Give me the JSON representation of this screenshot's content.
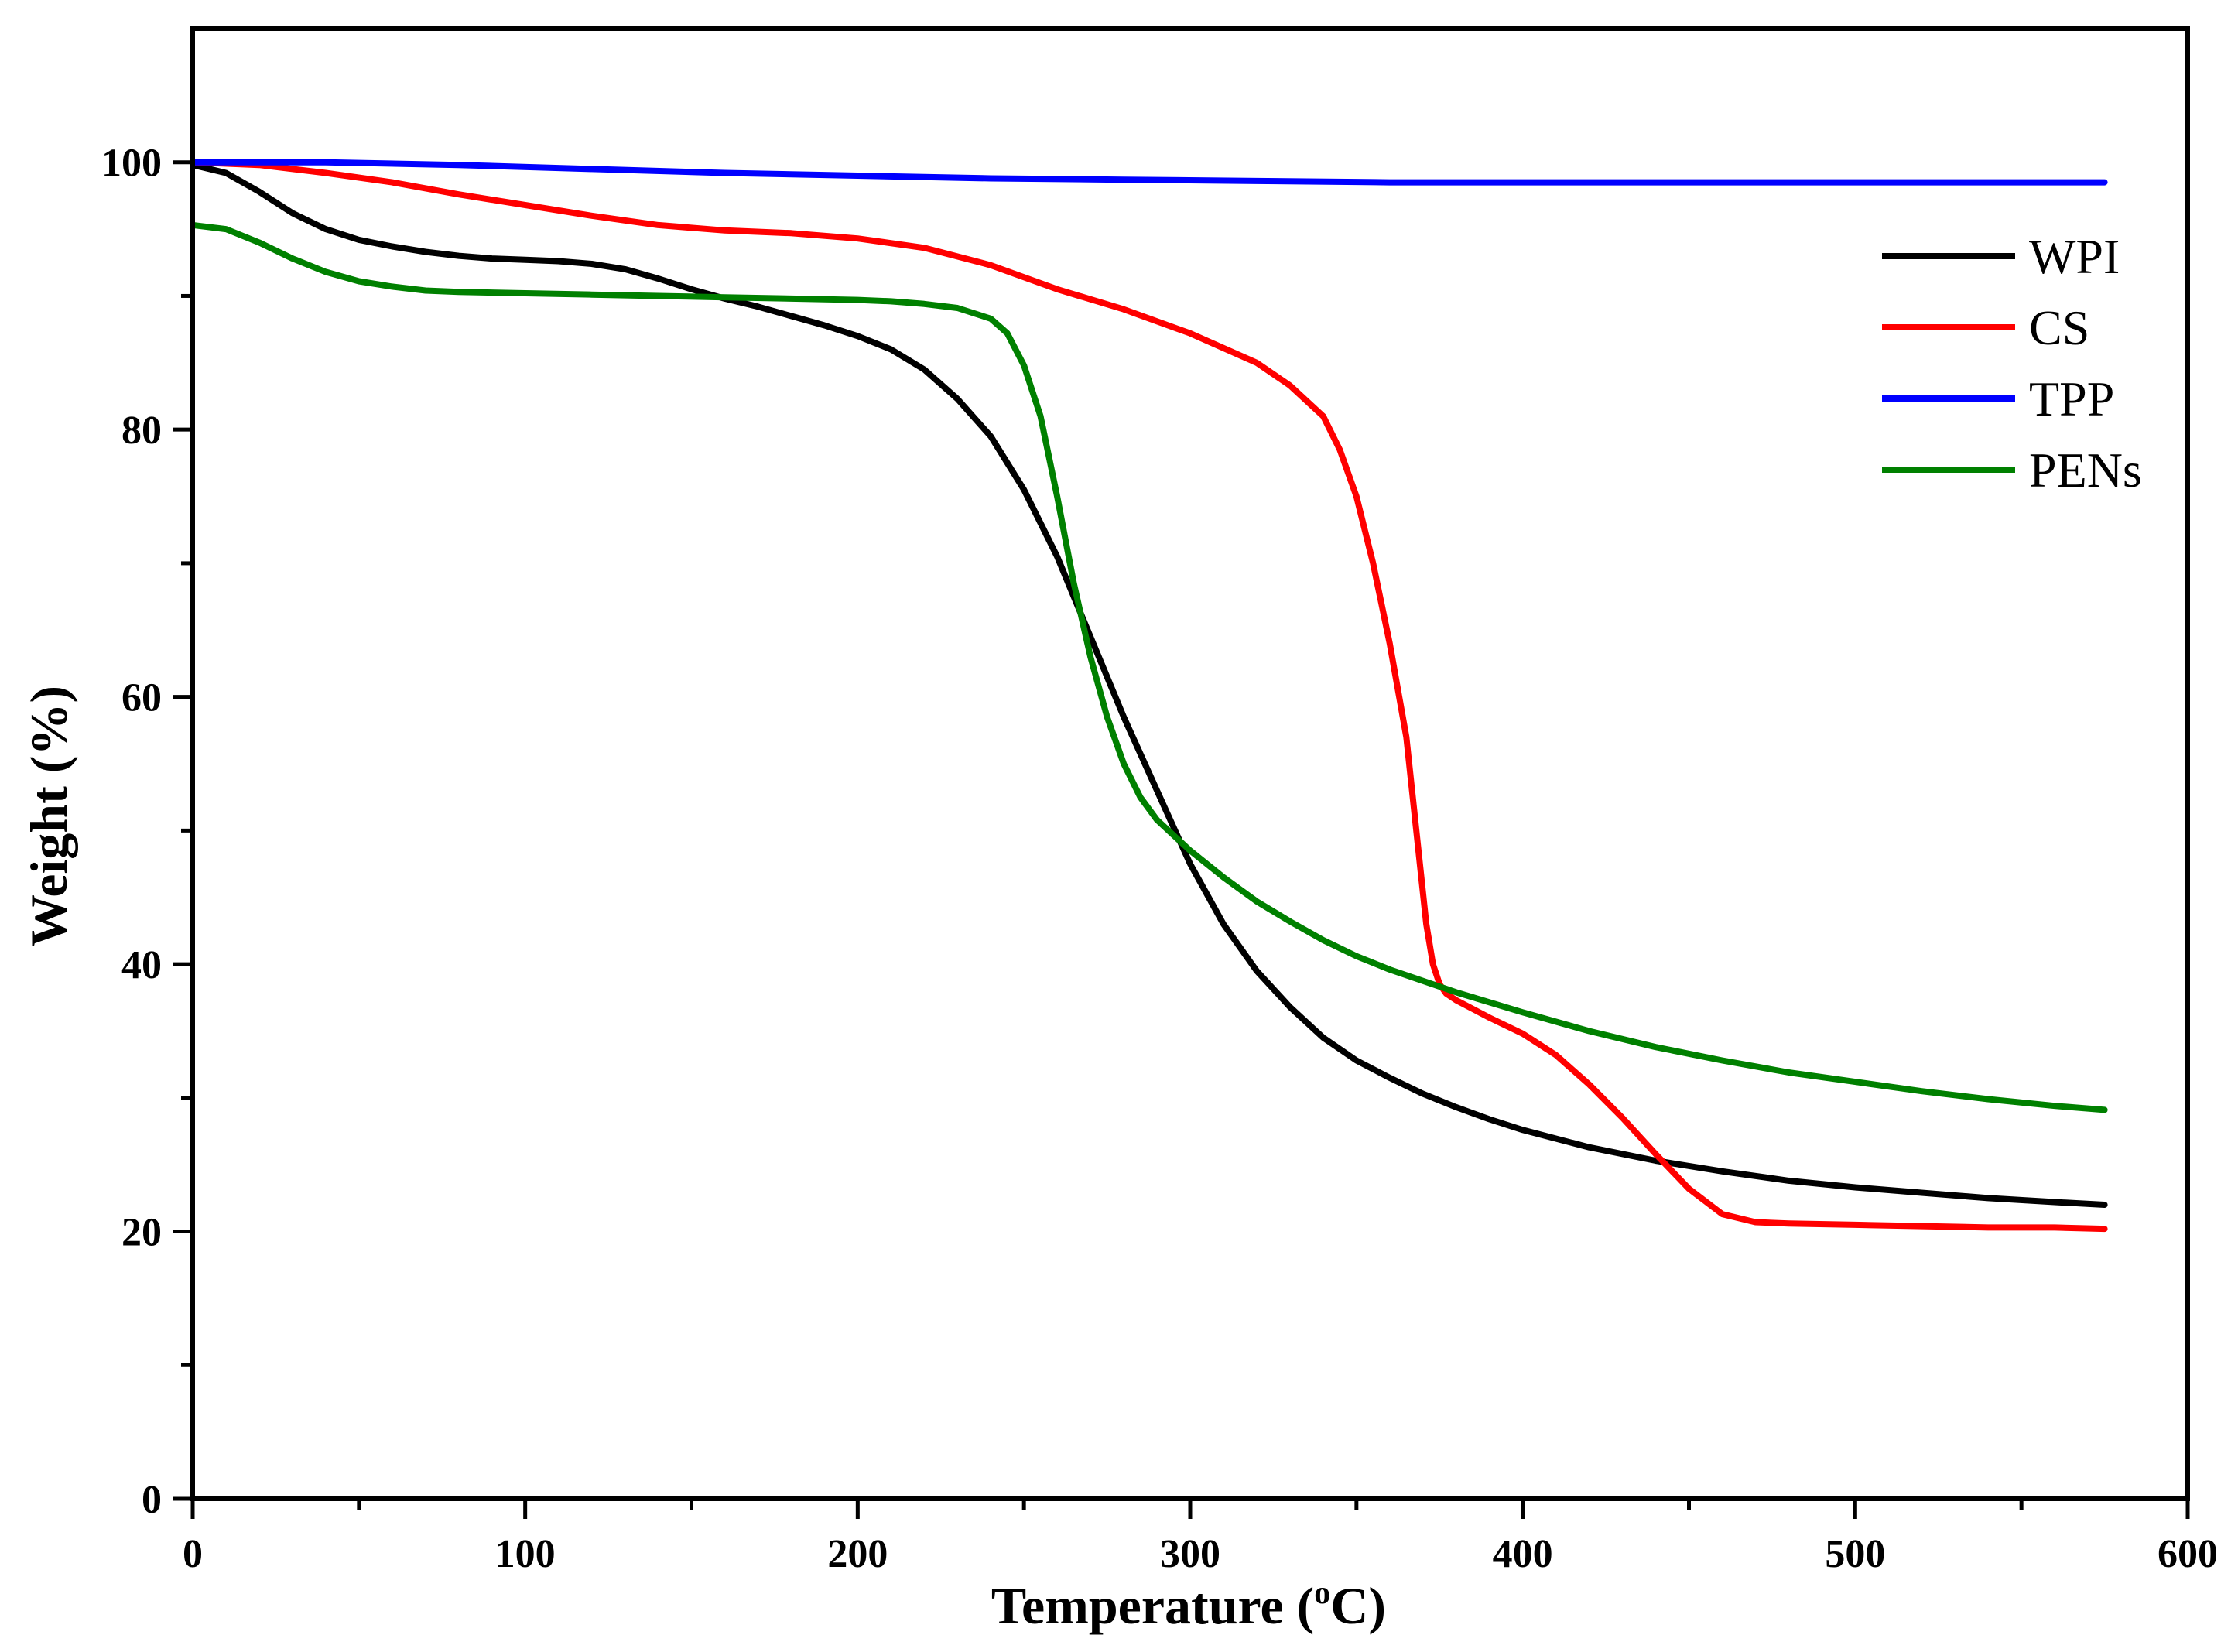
{
  "chart_data": {
    "type": "line",
    "xlabel": "Temperature",
    "xlabel_unit_prefix": "(",
    "xlabel_unit_sup": "o",
    "xlabel_unit_suffix": "C)",
    "ylabel": "Weight (%)",
    "xlim": [
      0,
      600
    ],
    "ylim": [
      0,
      110
    ],
    "xticks": [
      0,
      100,
      200,
      300,
      400,
      500,
      600
    ],
    "xtick_labels": [
      "0",
      "100",
      "200",
      "300",
      "400",
      "500",
      "600"
    ],
    "yticks": [
      0,
      20,
      40,
      60,
      80,
      100
    ],
    "ytick_labels": [
      "0",
      "20",
      "40",
      "60",
      "80",
      "100"
    ],
    "grid": false,
    "legend_position": "top-right",
    "series": [
      {
        "name": "WPI",
        "color": "#000000",
        "x": [
          0,
          10,
          20,
          30,
          40,
          50,
          60,
          70,
          80,
          90,
          100,
          110,
          120,
          130,
          140,
          150,
          160,
          170,
          180,
          190,
          200,
          210,
          220,
          230,
          240,
          250,
          260,
          270,
          280,
          290,
          300,
          310,
          320,
          330,
          340,
          350,
          360,
          370,
          380,
          390,
          400,
          420,
          440,
          460,
          480,
          500,
          520,
          540,
          560,
          575
        ],
        "y": [
          99.8,
          99.2,
          97.8,
          96.2,
          95.0,
          94.2,
          93.7,
          93.3,
          93.0,
          92.8,
          92.7,
          92.6,
          92.4,
          92.0,
          91.3,
          90.5,
          89.8,
          89.2,
          88.5,
          87.8,
          87.0,
          86.0,
          84.5,
          82.3,
          79.5,
          75.5,
          70.5,
          64.5,
          58.5,
          53.0,
          47.5,
          43.0,
          39.5,
          36.8,
          34.5,
          32.8,
          31.5,
          30.3,
          29.3,
          28.4,
          27.6,
          26.3,
          25.3,
          24.5,
          23.8,
          23.3,
          22.9,
          22.5,
          22.2,
          22.0
        ]
      },
      {
        "name": "CS",
        "color": "#ff0000",
        "x": [
          0,
          20,
          40,
          60,
          80,
          100,
          120,
          140,
          160,
          180,
          200,
          220,
          240,
          260,
          280,
          300,
          320,
          330,
          340,
          345,
          350,
          355,
          360,
          365,
          368,
          371,
          373,
          375,
          377,
          380,
          390,
          400,
          410,
          420,
          430,
          440,
          450,
          460,
          470,
          480,
          500,
          520,
          540,
          560,
          575
        ],
        "y": [
          100.0,
          99.8,
          99.2,
          98.5,
          97.6,
          96.8,
          96.0,
          95.3,
          94.9,
          94.7,
          94.3,
          93.6,
          92.3,
          90.5,
          89.0,
          87.2,
          85.0,
          83.3,
          81.0,
          78.5,
          75.0,
          70.0,
          64.0,
          57.0,
          50.0,
          43.0,
          40.0,
          38.5,
          37.8,
          37.3,
          36.0,
          34.8,
          33.2,
          31.0,
          28.5,
          25.8,
          23.2,
          21.3,
          20.7,
          20.6,
          20.5,
          20.4,
          20.3,
          20.3,
          20.2
        ]
      },
      {
        "name": "TPP",
        "color": "#0000ff",
        "x": [
          0,
          40,
          80,
          120,
          160,
          200,
          240,
          280,
          320,
          360,
          400,
          440,
          480,
          520,
          560,
          575
        ],
        "y": [
          100.0,
          100.0,
          99.8,
          99.5,
          99.2,
          99.0,
          98.8,
          98.7,
          98.6,
          98.5,
          98.5,
          98.5,
          98.5,
          98.5,
          98.5,
          98.5
        ]
      },
      {
        "name": "PENs",
        "color": "#008000",
        "x": [
          0,
          10,
          20,
          30,
          40,
          50,
          60,
          70,
          80,
          100,
          120,
          140,
          160,
          180,
          200,
          210,
          220,
          230,
          240,
          245,
          250,
          255,
          260,
          265,
          270,
          275,
          280,
          285,
          290,
          300,
          310,
          320,
          330,
          340,
          350,
          360,
          380,
          400,
          420,
          440,
          460,
          480,
          500,
          520,
          540,
          560,
          575
        ],
        "y": [
          95.3,
          95.0,
          94.0,
          92.8,
          91.8,
          91.1,
          90.7,
          90.4,
          90.3,
          90.2,
          90.1,
          90.0,
          89.9,
          89.8,
          89.7,
          89.6,
          89.4,
          89.1,
          88.3,
          87.2,
          84.8,
          81.0,
          75.0,
          68.5,
          63.0,
          58.5,
          55.0,
          52.5,
          50.8,
          48.5,
          46.5,
          44.7,
          43.2,
          41.8,
          40.6,
          39.6,
          37.9,
          36.4,
          35.0,
          33.8,
          32.8,
          31.9,
          31.2,
          30.5,
          29.9,
          29.4,
          29.1
        ]
      }
    ]
  }
}
